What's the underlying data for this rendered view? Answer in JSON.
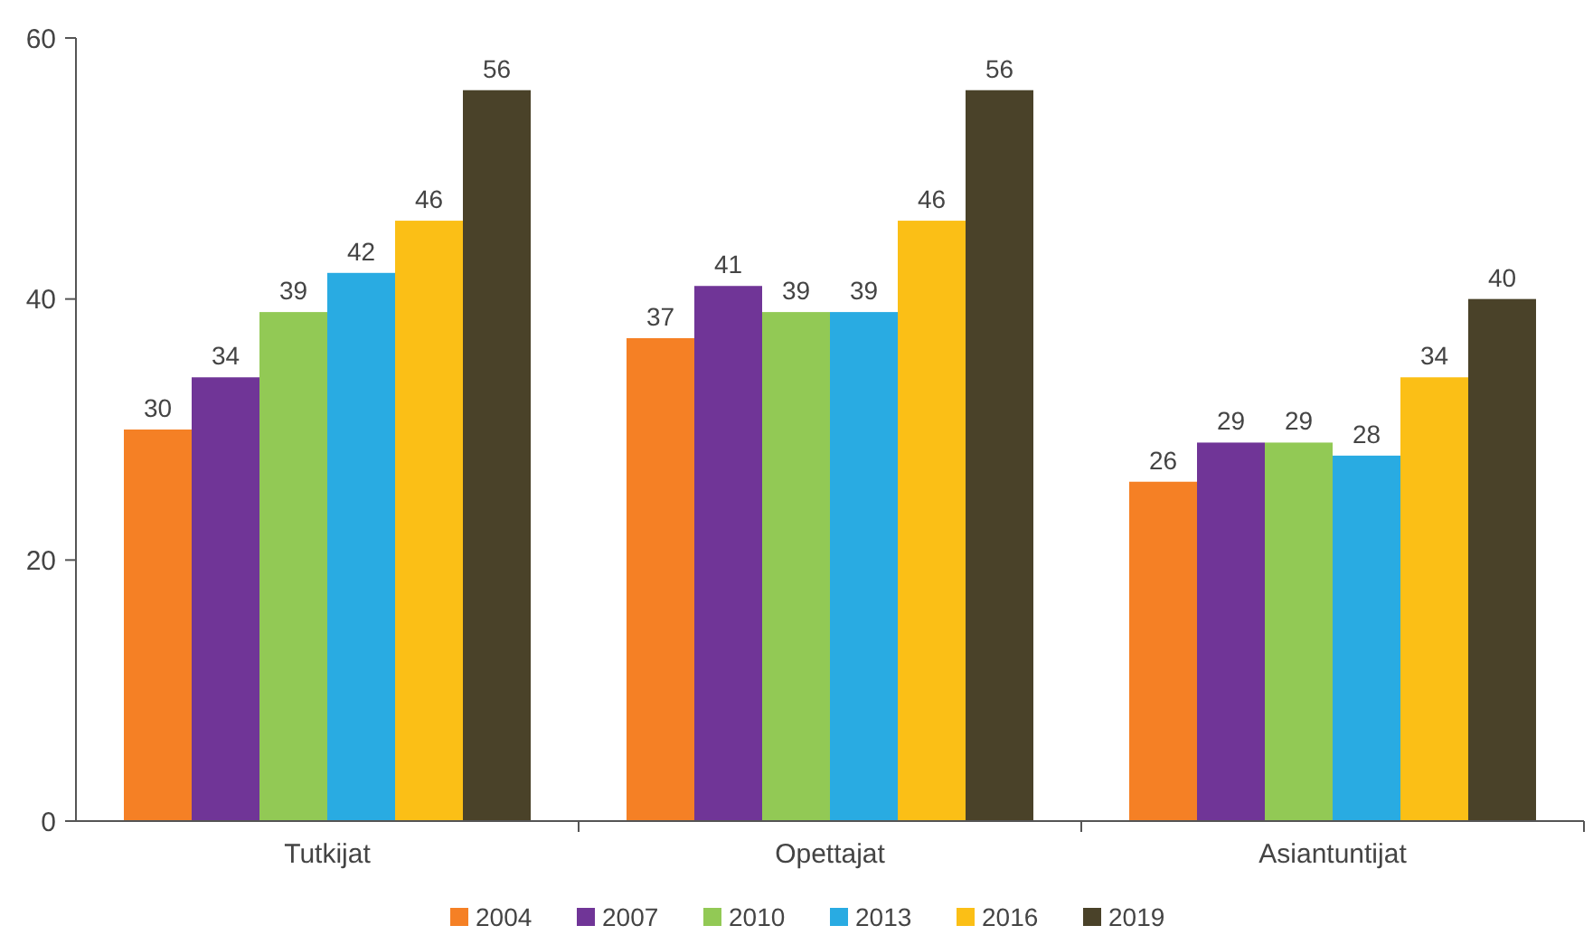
{
  "chart_data": {
    "type": "bar",
    "categories": [
      "Tutkijat",
      "Opettajat",
      "Asiantuntijat"
    ],
    "series": [
      {
        "name": "2004",
        "color": "#f58025",
        "values": [
          30,
          37,
          26
        ]
      },
      {
        "name": "2007",
        "color": "#703597",
        "values": [
          34,
          41,
          29
        ]
      },
      {
        "name": "2010",
        "color": "#92c955",
        "values": [
          39,
          39,
          29
        ]
      },
      {
        "name": "2013",
        "color": "#29abe2",
        "values": [
          42,
          39,
          28
        ]
      },
      {
        "name": "2016",
        "color": "#fbbf16",
        "values": [
          46,
          46,
          34
        ]
      },
      {
        "name": "2019",
        "color": "#4a4229",
        "values": [
          56,
          56,
          40
        ]
      }
    ],
    "ylim": [
      0,
      60
    ],
    "yticks": [
      0,
      20,
      40,
      60
    ],
    "grid": false,
    "legend": "bottom",
    "data_labels": true
  }
}
